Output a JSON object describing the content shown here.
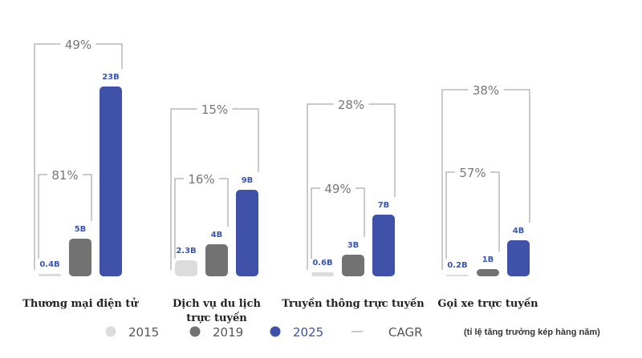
{
  "chart_data": {
    "type": "bar",
    "categories": [
      [
        "Thương mại điện tử"
      ],
      [
        "Dịch vụ du lịch",
        "trực tuyến"
      ],
      [
        "Truyền thông trực tuyến"
      ],
      [
        "Gọi xe trực tuyến"
      ]
    ],
    "series": [
      {
        "name": "2015",
        "values": [
          0.4,
          2.3,
          0.6,
          0.2
        ],
        "labels": [
          "0.4B",
          "2.3B",
          "0.6B",
          "0.2B"
        ],
        "color": "#dcdcdc"
      },
      {
        "name": "2019",
        "values": [
          5,
          4,
          3,
          1
        ],
        "labels": [
          "5B",
          "4B",
          "3B",
          "1B"
        ],
        "color": "#727272"
      },
      {
        "name": "2025",
        "values": [
          23,
          9,
          7,
          4
        ],
        "labels": [
          "23B",
          "9B",
          "7B",
          "4B"
        ],
        "color": "#3f51a8"
      }
    ],
    "cagr_2015_2019": [
      "81%",
      "16%",
      "49%",
      "57%"
    ],
    "cagr_2015_2025": [
      "49%",
      "15%",
      "28%",
      "38%"
    ],
    "legend": {
      "items": [
        "2015",
        "2019",
        "2025"
      ],
      "cagr_label": "CAGR",
      "cagr_note": "(tỉ lệ tăng trưởng kép hàng năm)",
      "placement": "bottom"
    },
    "bracket_color": "#b8b8b8"
  }
}
